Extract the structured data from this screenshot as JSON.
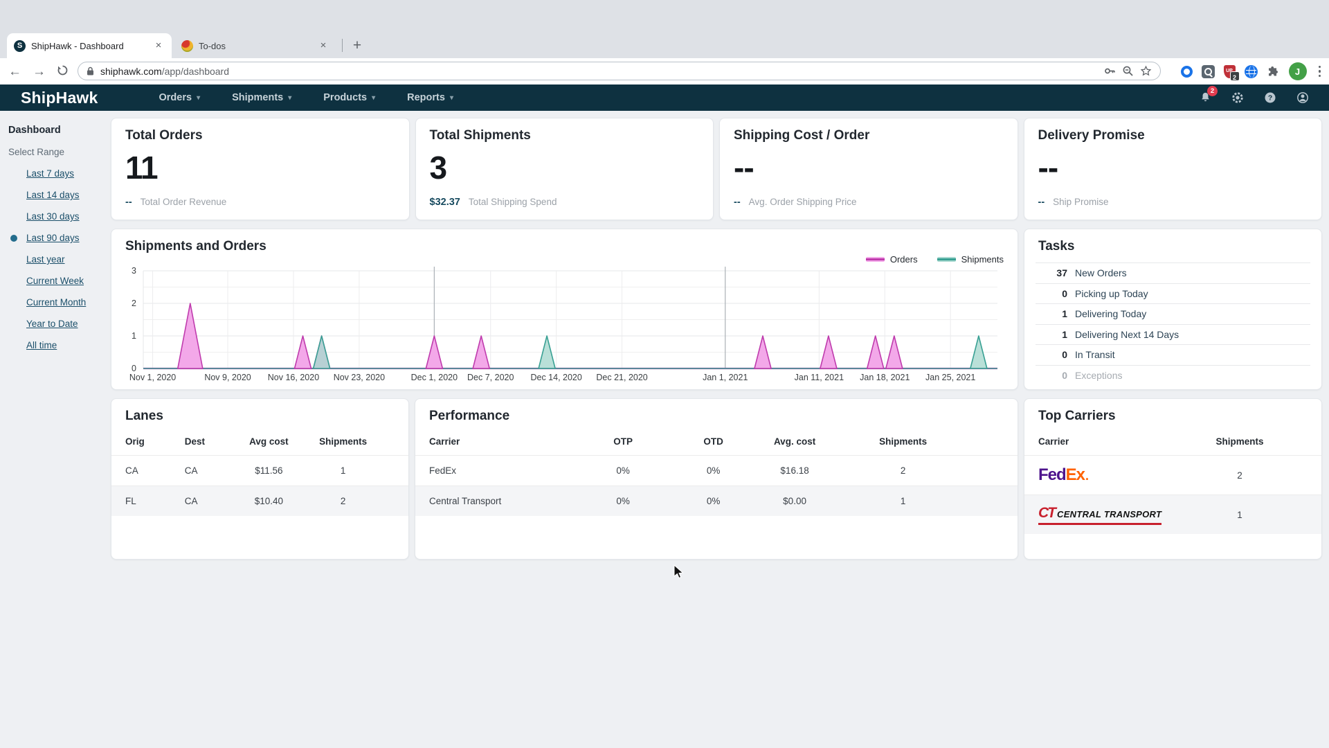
{
  "browser": {
    "tabs": [
      {
        "title": "ShipHawk - Dashboard",
        "favicon": "shiphawk",
        "active": true
      },
      {
        "title": "To-dos",
        "favicon": "todos",
        "active": false
      }
    ],
    "tab_close": "×",
    "new_tab": "+",
    "url_domain": "shiphawk.com",
    "url_path": "/app/dashboard",
    "extension_badge": "2",
    "avatar_initial": "J"
  },
  "navbar": {
    "brand": "ShipHawk",
    "menus": [
      {
        "label": "Orders"
      },
      {
        "label": "Shipments"
      },
      {
        "label": "Products"
      },
      {
        "label": "Reports"
      }
    ],
    "caret": "▾",
    "bell_badge": "2"
  },
  "sidebar": {
    "title": "Dashboard",
    "section": "Select Range",
    "ranges": [
      {
        "label": "Last 7 days",
        "selected": false
      },
      {
        "label": "Last 14 days",
        "selected": false
      },
      {
        "label": "Last 30 days",
        "selected": false
      },
      {
        "label": "Last 90 days",
        "selected": true
      },
      {
        "label": "Last year",
        "selected": false
      },
      {
        "label": "Current Week",
        "selected": false
      },
      {
        "label": "Current Month",
        "selected": false
      },
      {
        "label": "Year to Date",
        "selected": false
      },
      {
        "label": "All time",
        "selected": false
      }
    ]
  },
  "kpi_cards": [
    {
      "title": "Total Orders",
      "value": "11",
      "footer_value": "--",
      "footer_label": "Total Order Revenue"
    },
    {
      "title": "Total Shipments",
      "value": "3",
      "footer_value": "$32.37",
      "footer_label": "Total Shipping Spend"
    },
    {
      "title": "Shipping Cost / Order",
      "value": "--",
      "footer_value": "--",
      "footer_label": "Avg. Order Shipping Price"
    },
    {
      "title": "Delivery Promise",
      "value": "--",
      "footer_value": "--",
      "footer_label": "Ship Promise"
    }
  ],
  "chart_data": {
    "type": "area",
    "title": "Shipments and Orders",
    "ylim": [
      0,
      3
    ],
    "yticks": [
      0,
      1,
      2,
      3
    ],
    "x_axis_start": "Oct 31, 2020",
    "x_axis_end": "Jan 30, 2021",
    "x_ticks": [
      "Nov 1, 2020",
      "Nov 9, 2020",
      "Nov 16, 2020",
      "Nov 23, 2020",
      "Dec 1, 2020",
      "Dec 7, 2020",
      "Dec 14, 2020",
      "Dec 21, 2020",
      "Jan 1, 2021",
      "Jan 11, 2021",
      "Jan 18, 2021",
      "Jan 25, 2021"
    ],
    "month_boundary_ticks": [
      "Dec 1, 2020",
      "Jan 1, 2021"
    ],
    "grid": true,
    "legend_position": "top-right",
    "series": [
      {
        "name": "Orders",
        "stroke": "#bf3bad",
        "fill": "#f3a8e9",
        "fill_opacity": 1,
        "peaks": [
          [
            "Nov 5, 2020",
            2
          ],
          [
            "Nov 17, 2020",
            1
          ],
          [
            "Nov 19, 2020",
            1
          ],
          [
            "Dec 1, 2020",
            1
          ],
          [
            "Dec 6, 2020",
            1
          ],
          [
            "Jan 5, 2021",
            1
          ],
          [
            "Jan 12, 2021",
            1
          ],
          [
            "Jan 17, 2021",
            1
          ],
          [
            "Jan 19, 2021",
            1
          ]
        ]
      },
      {
        "name": "Shipments",
        "stroke": "#38a093",
        "fill": "#a9d9d0",
        "fill_opacity": 0.82,
        "peaks": [
          [
            "Nov 19, 2020",
            1
          ],
          [
            "Dec 13, 2020",
            1
          ],
          [
            "Jan 28, 2021",
            1
          ]
        ]
      }
    ]
  },
  "tasks": {
    "title": "Tasks",
    "rows": [
      {
        "count": "37",
        "label": "New Orders",
        "muted": false
      },
      {
        "count": "0",
        "label": "Picking up Today",
        "muted": false
      },
      {
        "count": "1",
        "label": "Delivering Today",
        "muted": false
      },
      {
        "count": "1",
        "label": "Delivering Next 14 Days",
        "muted": false
      },
      {
        "count": "0",
        "label": "In Transit",
        "muted": false
      },
      {
        "count": "0",
        "label": "Exceptions",
        "muted": true
      }
    ]
  },
  "lanes": {
    "title": "Lanes",
    "headers": [
      "Orig",
      "Dest",
      "Avg cost",
      "Shipments"
    ],
    "rows": [
      [
        "CA",
        "CA",
        "$11.56",
        "1"
      ],
      [
        "FL",
        "CA",
        "$10.40",
        "2"
      ]
    ]
  },
  "performance": {
    "title": "Performance",
    "headers": [
      "Carrier",
      "OTP",
      "OTD",
      "Avg. cost",
      "Shipments"
    ],
    "rows": [
      [
        "FedEx",
        "0%",
        "0%",
        "$16.18",
        "2"
      ],
      [
        "Central Transport",
        "0%",
        "0%",
        "$0.00",
        "1"
      ]
    ]
  },
  "top_carriers": {
    "title": "Top Carriers",
    "headers": [
      "Carrier",
      "Shipments"
    ],
    "rows": [
      {
        "carrier": "FedEx",
        "logo": "fedex",
        "shipments": "2"
      },
      {
        "carrier": "Central Transport",
        "logo": "central-transport",
        "shipments": "1"
      }
    ]
  },
  "colors": {
    "navbar_bg": "#0e3140",
    "orders_magenta": "#bf3bad",
    "shipments_teal": "#38a093",
    "selected_dot": "#236c8c",
    "badge_red": "#e23c4f",
    "accent_value": "#174a5f",
    "fedex_purple": "#4d148c",
    "fedex_orange": "#ff6200",
    "central_red": "#c8202d"
  }
}
